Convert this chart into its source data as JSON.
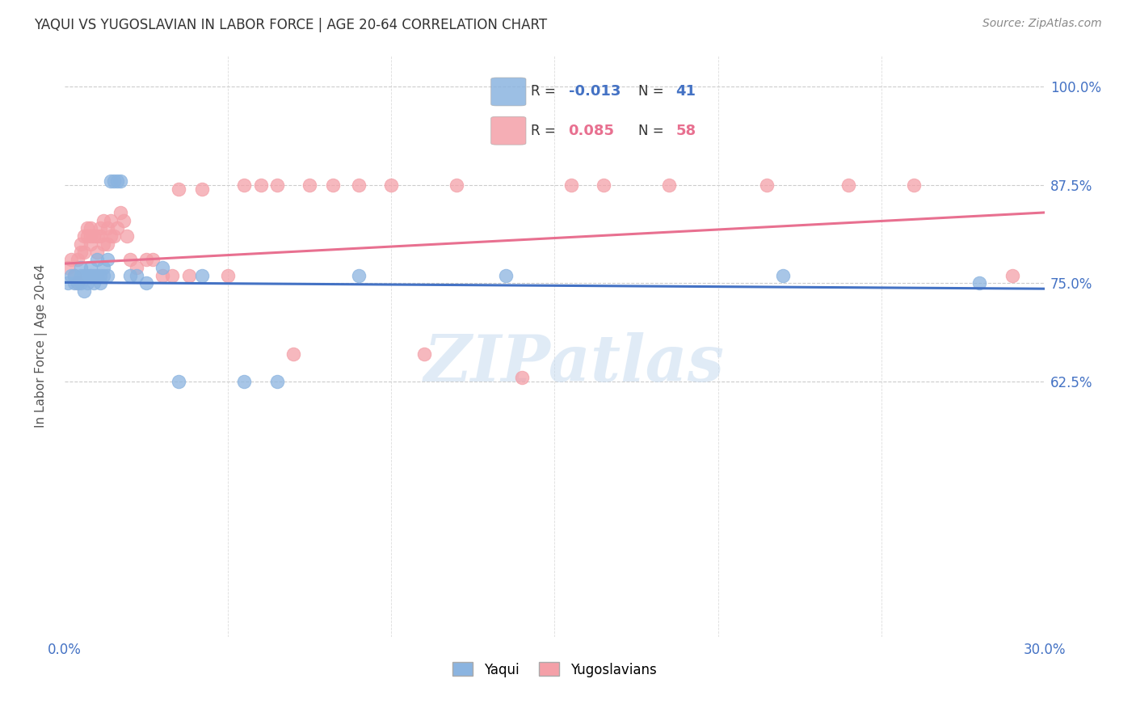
{
  "title": "YAQUI VS YUGOSLAVIAN IN LABOR FORCE | AGE 20-64 CORRELATION CHART",
  "source": "Source: ZipAtlas.com",
  "ylabel": "In Labor Force | Age 20-64",
  "xlim": [
    0.0,
    0.3
  ],
  "ylim": [
    0.3,
    1.04
  ],
  "xticks": [
    0.0,
    0.05,
    0.1,
    0.15,
    0.2,
    0.25,
    0.3
  ],
  "xticklabels": [
    "0.0%",
    "",
    "",
    "",
    "",
    "",
    "30.0%"
  ],
  "yticks": [
    0.625,
    0.75,
    0.875,
    1.0
  ],
  "yticklabels": [
    "62.5%",
    "75.0%",
    "87.5%",
    "100.0%"
  ],
  "blue_color": "#8BB4E0",
  "pink_color": "#F4A0A8",
  "blue_line_color": "#4472C4",
  "pink_line_color": "#E87090",
  "blue_label": "Yaqui",
  "pink_label": "Yugoslavians",
  "watermark_text": "ZIPatlas",
  "yaqui_x": [
    0.001,
    0.002,
    0.003,
    0.003,
    0.004,
    0.005,
    0.005,
    0.005,
    0.006,
    0.006,
    0.007,
    0.007,
    0.008,
    0.008,
    0.008,
    0.009,
    0.009,
    0.01,
    0.01,
    0.011,
    0.011,
    0.012,
    0.012,
    0.013,
    0.013,
    0.014,
    0.015,
    0.016,
    0.017,
    0.02,
    0.022,
    0.025,
    0.03,
    0.035,
    0.042,
    0.055,
    0.065,
    0.09,
    0.135,
    0.22,
    0.28
  ],
  "yaqui_y": [
    0.75,
    0.76,
    0.75,
    0.76,
    0.75,
    0.75,
    0.76,
    0.77,
    0.74,
    0.76,
    0.75,
    0.76,
    0.76,
    0.77,
    0.76,
    0.75,
    0.76,
    0.78,
    0.76,
    0.75,
    0.76,
    0.76,
    0.77,
    0.78,
    0.76,
    0.88,
    0.88,
    0.88,
    0.88,
    0.76,
    0.76,
    0.75,
    0.77,
    0.625,
    0.76,
    0.625,
    0.625,
    0.76,
    0.76,
    0.76,
    0.75
  ],
  "yugo_x": [
    0.001,
    0.002,
    0.003,
    0.004,
    0.004,
    0.005,
    0.005,
    0.006,
    0.006,
    0.007,
    0.007,
    0.008,
    0.008,
    0.008,
    0.009,
    0.01,
    0.01,
    0.011,
    0.011,
    0.012,
    0.012,
    0.013,
    0.013,
    0.014,
    0.014,
    0.015,
    0.016,
    0.017,
    0.018,
    0.019,
    0.02,
    0.022,
    0.025,
    0.027,
    0.03,
    0.033,
    0.035,
    0.038,
    0.042,
    0.05,
    0.055,
    0.06,
    0.065,
    0.07,
    0.075,
    0.082,
    0.09,
    0.1,
    0.11,
    0.12,
    0.14,
    0.155,
    0.165,
    0.185,
    0.215,
    0.24,
    0.26,
    0.29
  ],
  "yugo_y": [
    0.77,
    0.78,
    0.76,
    0.75,
    0.78,
    0.79,
    0.8,
    0.81,
    0.79,
    0.81,
    0.82,
    0.81,
    0.82,
    0.8,
    0.81,
    0.79,
    0.81,
    0.82,
    0.81,
    0.8,
    0.83,
    0.8,
    0.82,
    0.81,
    0.83,
    0.81,
    0.82,
    0.84,
    0.83,
    0.81,
    0.78,
    0.77,
    0.78,
    0.78,
    0.76,
    0.76,
    0.87,
    0.76,
    0.87,
    0.76,
    0.875,
    0.875,
    0.875,
    0.66,
    0.875,
    0.875,
    0.875,
    0.875,
    0.66,
    0.875,
    0.63,
    0.875,
    0.875,
    0.875,
    0.875,
    0.875,
    0.875,
    0.76
  ],
  "blue_line_x": [
    0.0,
    0.3
  ],
  "blue_line_y": [
    0.751,
    0.743
  ],
  "pink_line_x": [
    0.0,
    0.3
  ],
  "pink_line_y": [
    0.775,
    0.84
  ]
}
